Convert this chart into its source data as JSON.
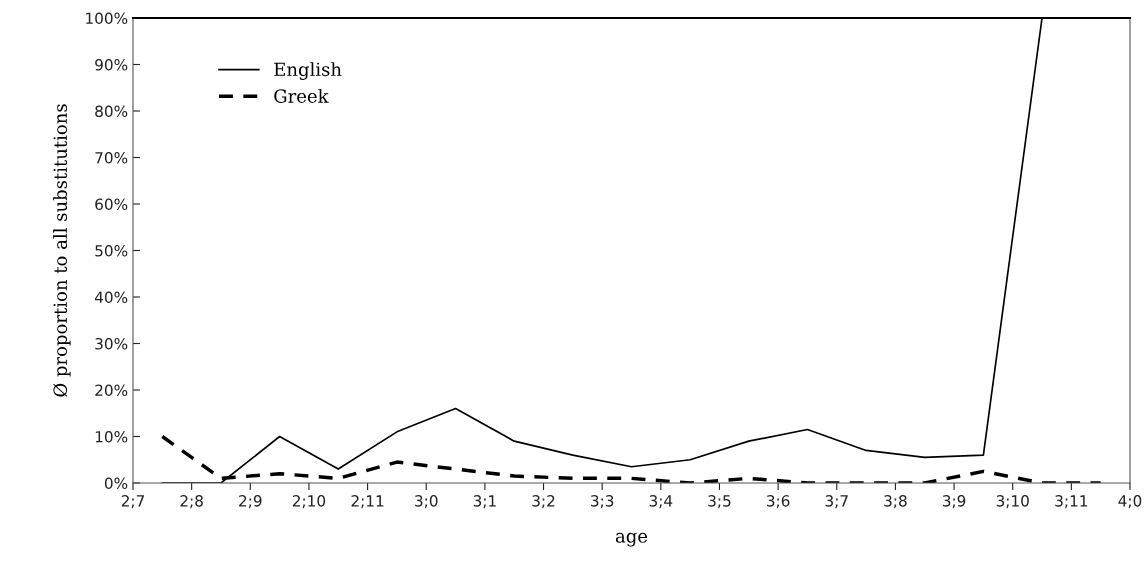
{
  "chart_data": {
    "type": "line",
    "xlabel": "age",
    "ylabel": "Ø proportion to all substitutions",
    "categories": [
      "2;7",
      null,
      "2;8",
      null,
      "2;9",
      null,
      "2;10",
      null,
      "2;11",
      null,
      "3;0",
      null,
      "3;1",
      null,
      "3;2",
      null,
      "3;3",
      null,
      "3;4",
      null,
      "3;5",
      null,
      "3;6",
      null,
      "3;7",
      null,
      "3;8",
      null,
      "3;9",
      null,
      "3;10",
      null,
      "3;11",
      null,
      "4;0"
    ],
    "series": [
      {
        "name": "English",
        "color": "#000000",
        "line_style": "solid",
        "values": [
          null,
          0,
          null,
          0,
          null,
          10,
          null,
          3,
          null,
          11,
          null,
          16,
          null,
          9,
          null,
          6,
          null,
          3.5,
          null,
          5,
          null,
          9,
          null,
          11.5,
          null,
          7,
          null,
          5.5,
          null,
          6,
          null,
          100,
          null,
          100,
          null
        ]
      },
      {
        "name": "Greek",
        "color": "#000000",
        "line_style": "dashed",
        "values": [
          null,
          10,
          null,
          1,
          null,
          2,
          null,
          1,
          null,
          4.5,
          null,
          3,
          null,
          1.5,
          null,
          1,
          null,
          1,
          null,
          0,
          null,
          1,
          null,
          0,
          null,
          0,
          null,
          0,
          null,
          2.5,
          null,
          0,
          null,
          0,
          null
        ]
      }
    ],
    "ylim": [
      0,
      100
    ],
    "yticks": [
      {
        "value": 0,
        "label": "0%"
      },
      {
        "value": 10,
        "label": "10%"
      },
      {
        "value": 20,
        "label": "20%"
      },
      {
        "value": 30,
        "label": "30%"
      },
      {
        "value": 40,
        "label": "40%"
      },
      {
        "value": 50,
        "label": "50%"
      },
      {
        "value": 60,
        "label": "60%"
      },
      {
        "value": 70,
        "label": "70%"
      },
      {
        "value": 80,
        "label": "80%"
      },
      {
        "value": 90,
        "label": "90%"
      },
      {
        "value": 100,
        "label": "100%"
      }
    ],
    "grid": false,
    "legend": "top left",
    "marker": "none"
  }
}
